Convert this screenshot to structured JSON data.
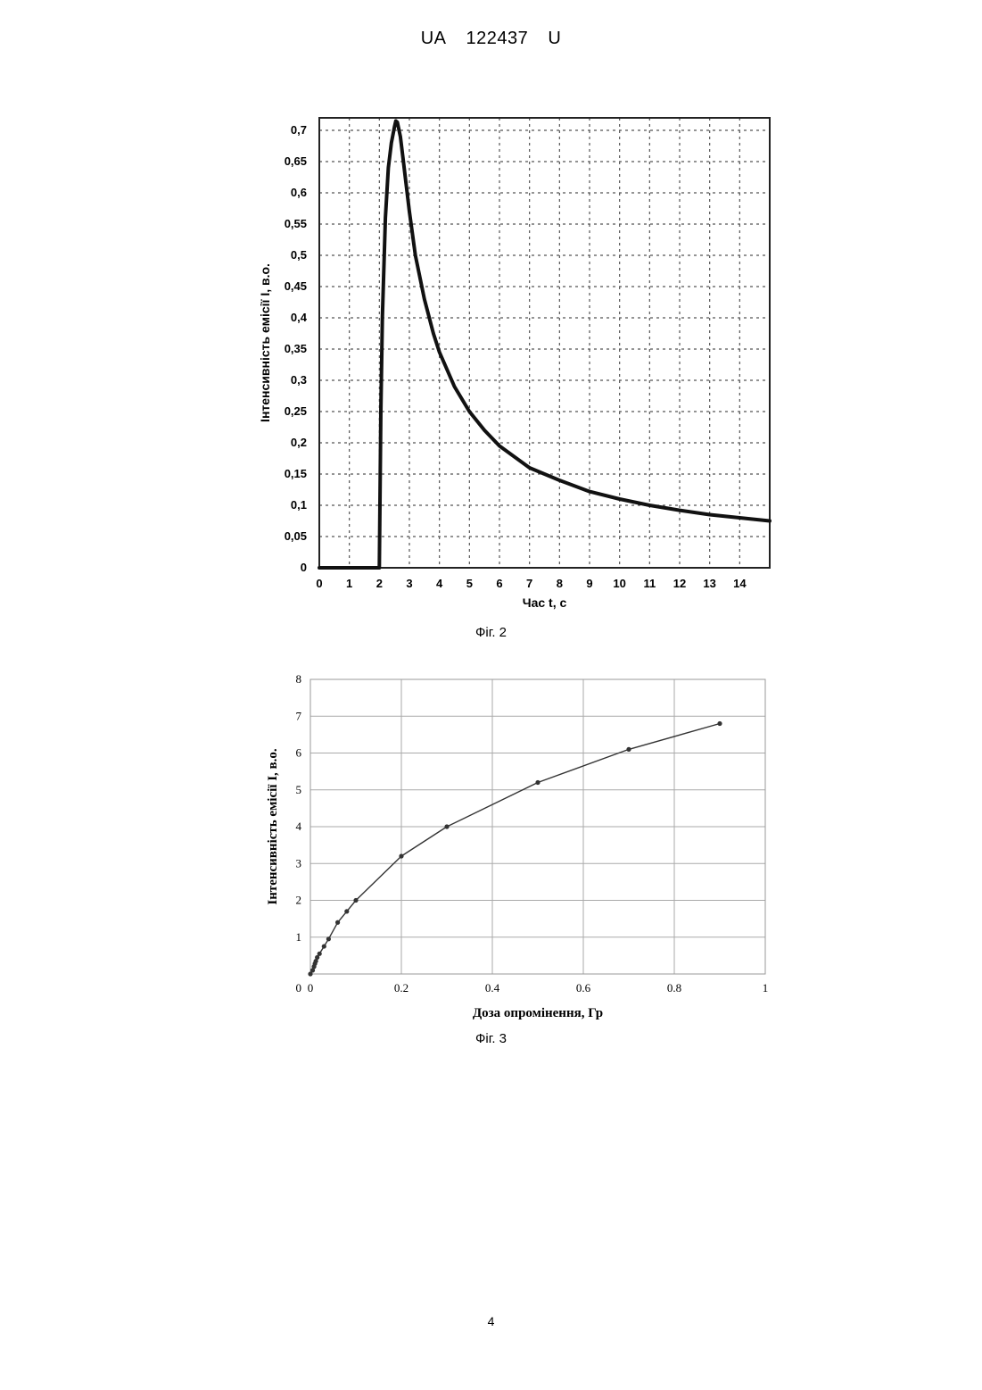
{
  "header": {
    "country": "UA",
    "number": "122437",
    "kind": "U"
  },
  "page_number": "4",
  "chart_data": [
    {
      "type": "line",
      "caption": "Фіг. 2",
      "xlabel": "Час t, с",
      "ylabel": "Інтенсивність емісії І, в.о.",
      "xlim": [
        0,
        15
      ],
      "ylim": [
        0,
        0.72
      ],
      "grid": true,
      "grid_style": "dotted",
      "x_ticks": [
        0,
        1,
        2,
        3,
        4,
        5,
        6,
        7,
        8,
        9,
        10,
        11,
        12,
        13,
        14
      ],
      "x_tick_labels": [
        "0",
        "1",
        "2",
        "3",
        "4",
        "5",
        "6",
        "7",
        "8",
        "9",
        "10",
        "11",
        "12",
        "13",
        "14"
      ],
      "y_ticks": [
        0,
        0.05,
        0.1,
        0.15,
        0.2,
        0.25,
        0.3,
        0.35,
        0.4,
        0.45,
        0.5,
        0.55,
        0.6,
        0.65,
        0.7
      ],
      "y_tick_labels": [
        "0",
        "0,05",
        "0,1",
        "0,15",
        "0,2",
        "0,25",
        "0,3",
        "0,35",
        "0,4",
        "0,45",
        "0,5",
        "0,55",
        "0,6",
        "0,65",
        "0,7"
      ],
      "series": [
        {
          "x": [
            0,
            2.0,
            2.05,
            2.1,
            2.2,
            2.3,
            2.4,
            2.5,
            2.55,
            2.6,
            2.7,
            2.8,
            3.0,
            3.2,
            3.5,
            3.8,
            4.0,
            4.5,
            5.0,
            5.5,
            6.0,
            7.0,
            8.0,
            9.0,
            10.0,
            11.0,
            12.0,
            13.0,
            14.0,
            15.0
          ],
          "y": [
            0,
            0,
            0.25,
            0.4,
            0.56,
            0.64,
            0.68,
            0.705,
            0.715,
            0.713,
            0.69,
            0.65,
            0.57,
            0.5,
            0.43,
            0.375,
            0.345,
            0.29,
            0.25,
            0.22,
            0.195,
            0.16,
            0.14,
            0.122,
            0.11,
            0.1,
            0.092,
            0.085,
            0.08,
            0.075
          ],
          "color": "#111111"
        }
      ]
    },
    {
      "type": "line",
      "caption": "Фіг. 3",
      "xlabel": "Доза опромінення, Гр",
      "ylabel": "Інтенсивність емісії І, в.о.",
      "xlim": [
        0,
        1
      ],
      "ylim": [
        0,
        8
      ],
      "grid": true,
      "grid_style": "solid",
      "markers": true,
      "x_ticks": [
        0,
        0.2,
        0.4,
        0.6,
        0.8,
        1
      ],
      "x_tick_labels": [
        "0",
        "0.2",
        "0.4",
        "0.6",
        "0.8",
        "1"
      ],
      "y_ticks": [
        1,
        2,
        3,
        4,
        5,
        6,
        7,
        8
      ],
      "y_tick_labels": [
        "1",
        "2",
        "3",
        "4",
        "5",
        "6",
        "7",
        "8"
      ],
      "series": [
        {
          "x": [
            0.0,
            0.005,
            0.008,
            0.01,
            0.012,
            0.015,
            0.02,
            0.03,
            0.04,
            0.06,
            0.08,
            0.1,
            0.2,
            0.3,
            0.5,
            0.7,
            0.9
          ],
          "y": [
            0.0,
            0.1,
            0.2,
            0.28,
            0.35,
            0.45,
            0.55,
            0.75,
            0.95,
            1.4,
            1.7,
            2.0,
            3.2,
            4.0,
            5.2,
            6.1,
            6.8
          ],
          "color": "#333333"
        }
      ]
    }
  ]
}
